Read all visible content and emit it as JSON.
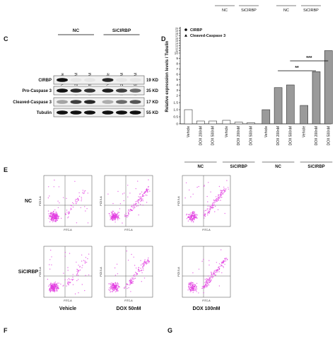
{
  "top": {
    "groups": [
      "NC",
      "SiCIRBP",
      "NC",
      "SiCIRBP"
    ]
  },
  "panel_c": {
    "letter": "C",
    "groups": [
      "NC",
      "SiCIRBP"
    ],
    "lanes": [
      "Vehicle",
      "DOX 200 nM",
      "DOX 500 nM",
      "Vehicle",
      "DOX 200 nM",
      "DOX 500 nM"
    ],
    "rows": [
      {
        "label": "CIRBP",
        "size": "19 KD"
      },
      {
        "label": "Pro-Caspase 3",
        "size": "35 KD"
      },
      {
        "label": "Cleaved-Caspase 3",
        "size": "17 KD"
      },
      {
        "label": "Tubulin",
        "size": "55 KD"
      }
    ]
  },
  "panel_d": {
    "letter": "D",
    "type": "bar",
    "y_label": "Relative expression levels / Tubulin",
    "yticks": [
      0,
      0.5,
      {
        "value": 1,
        "label": "1.0"
      },
      1.5,
      2,
      3,
      4,
      5,
      6,
      7,
      8,
      9,
      10,
      11,
      12,
      13,
      14,
      15,
      16,
      17,
      18,
      19,
      20
    ],
    "categories": [
      "Vehicle",
      "DOX 200nM",
      "DOX 500nM",
      "Vehicle",
      "DOX 200nM",
      "DOX 500nM",
      "Vehicle",
      "DOX 200nM",
      "DOX 500nM",
      "Vehicle",
      "DOX 200nM",
      "DOX 500nM"
    ],
    "groups": [
      "NC",
      "SiCIRBP",
      "NC",
      "SiCIRBP"
    ],
    "series": [
      {
        "name": "CIRBP",
        "color": "#ffffff",
        "values": [
          1.0,
          0.2,
          0.2,
          0.25,
          0.12,
          0.08
        ]
      },
      {
        "name": "Cleaved-Caspase 3",
        "color": "#9a9a9a",
        "values": [
          1.0,
          3.5,
          4.0,
          1.3,
          6.5,
          11.0
        ]
      }
    ],
    "significance": [
      "**",
      "***"
    ]
  },
  "panel_e": {
    "letter": "E",
    "rows": [
      "NC",
      "SiCIRBP"
    ],
    "columns": [
      "Vehicle",
      "DOX 50nM",
      "DOX 100nM"
    ],
    "x_label": "FITC-A",
    "y_label": "PC5.5-A"
  },
  "panel_f": "F",
  "panel_g": "G"
}
